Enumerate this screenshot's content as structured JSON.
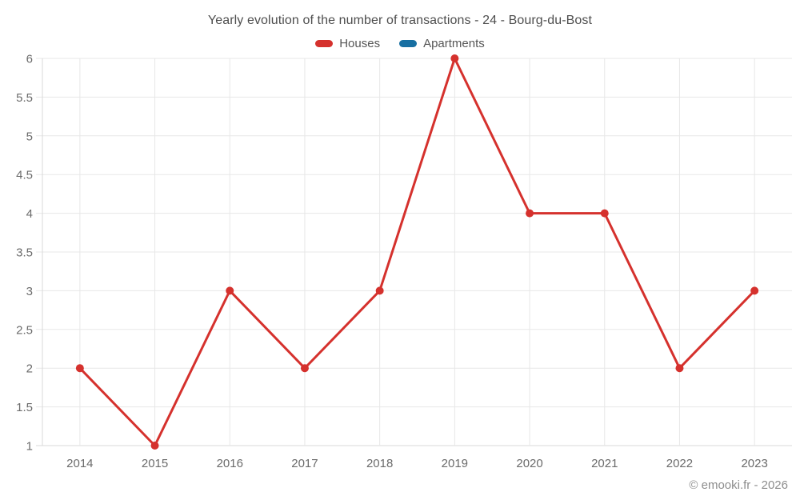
{
  "chart_data": {
    "type": "line",
    "title": "Yearly evolution of the number of transactions - 24 - Bourg-du-Bost",
    "categories": [
      "2014",
      "2015",
      "2016",
      "2017",
      "2018",
      "2019",
      "2020",
      "2021",
      "2022",
      "2023"
    ],
    "series": [
      {
        "name": "Houses",
        "color": "#d5312d",
        "values": [
          2,
          1,
          3,
          2,
          3,
          6,
          4,
          4,
          2,
          3
        ]
      },
      {
        "name": "Apartments",
        "color": "#176fa2",
        "values": []
      }
    ],
    "y_ticks": [
      1,
      1.5,
      2,
      2.5,
      3,
      3.5,
      4,
      4.5,
      5,
      5.5,
      6
    ],
    "ylim": [
      1,
      6
    ],
    "grid": true,
    "legend_position": "top"
  },
  "footer": {
    "copyright": "© emooki.fr - 2026"
  }
}
